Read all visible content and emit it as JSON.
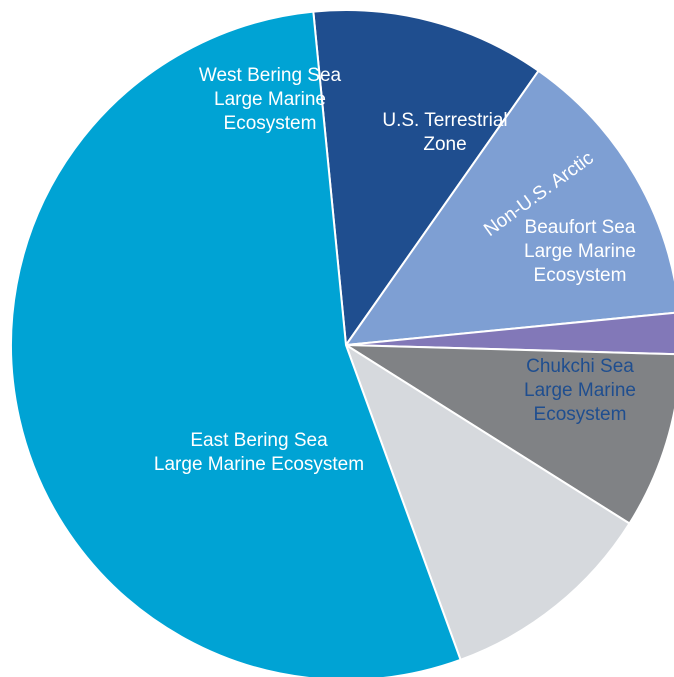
{
  "chart_data": {
    "type": "pie",
    "title": "",
    "unit": "%",
    "slices": [
      {
        "key": "west-bering-sea",
        "label_lines": [
          "West Bering Sea",
          "Large Marine",
          "Ecosystem"
        ],
        "value": 11.3,
        "color": "#1f4e8f",
        "label_color": "#ffffff"
      },
      {
        "key": "us-terrestrial-zone",
        "label_lines": [
          "U.S. Terrestrial",
          "Zone"
        ],
        "value": 13.7,
        "color": "#7e9fd3",
        "label_color": "#ffffff"
      },
      {
        "key": "non-us-arctic",
        "label_lines": [
          "Non-U.S. Arctic"
        ],
        "value": 2.0,
        "color": "#8278b8",
        "label_color": "#ffffff"
      },
      {
        "key": "beaufort-sea",
        "label_lines": [
          "Beaufort Sea",
          "Large Marine",
          "Ecosystem"
        ],
        "value": 8.5,
        "color": "#808285",
        "label_color": "#ffffff"
      },
      {
        "key": "chukchi-sea",
        "label_lines": [
          "Chukchi Sea",
          "Large Marine",
          "Ecosystem"
        ],
        "value": 10.5,
        "color": "#d6d9dd",
        "label_color": "#1f4e8f"
      },
      {
        "key": "east-bering-sea",
        "label_lines": [
          "East Bering Sea",
          "Large Marine Ecosystem"
        ],
        "value": 54.0,
        "color": "#00a3d4",
        "label_color": "#ffffff"
      }
    ]
  }
}
